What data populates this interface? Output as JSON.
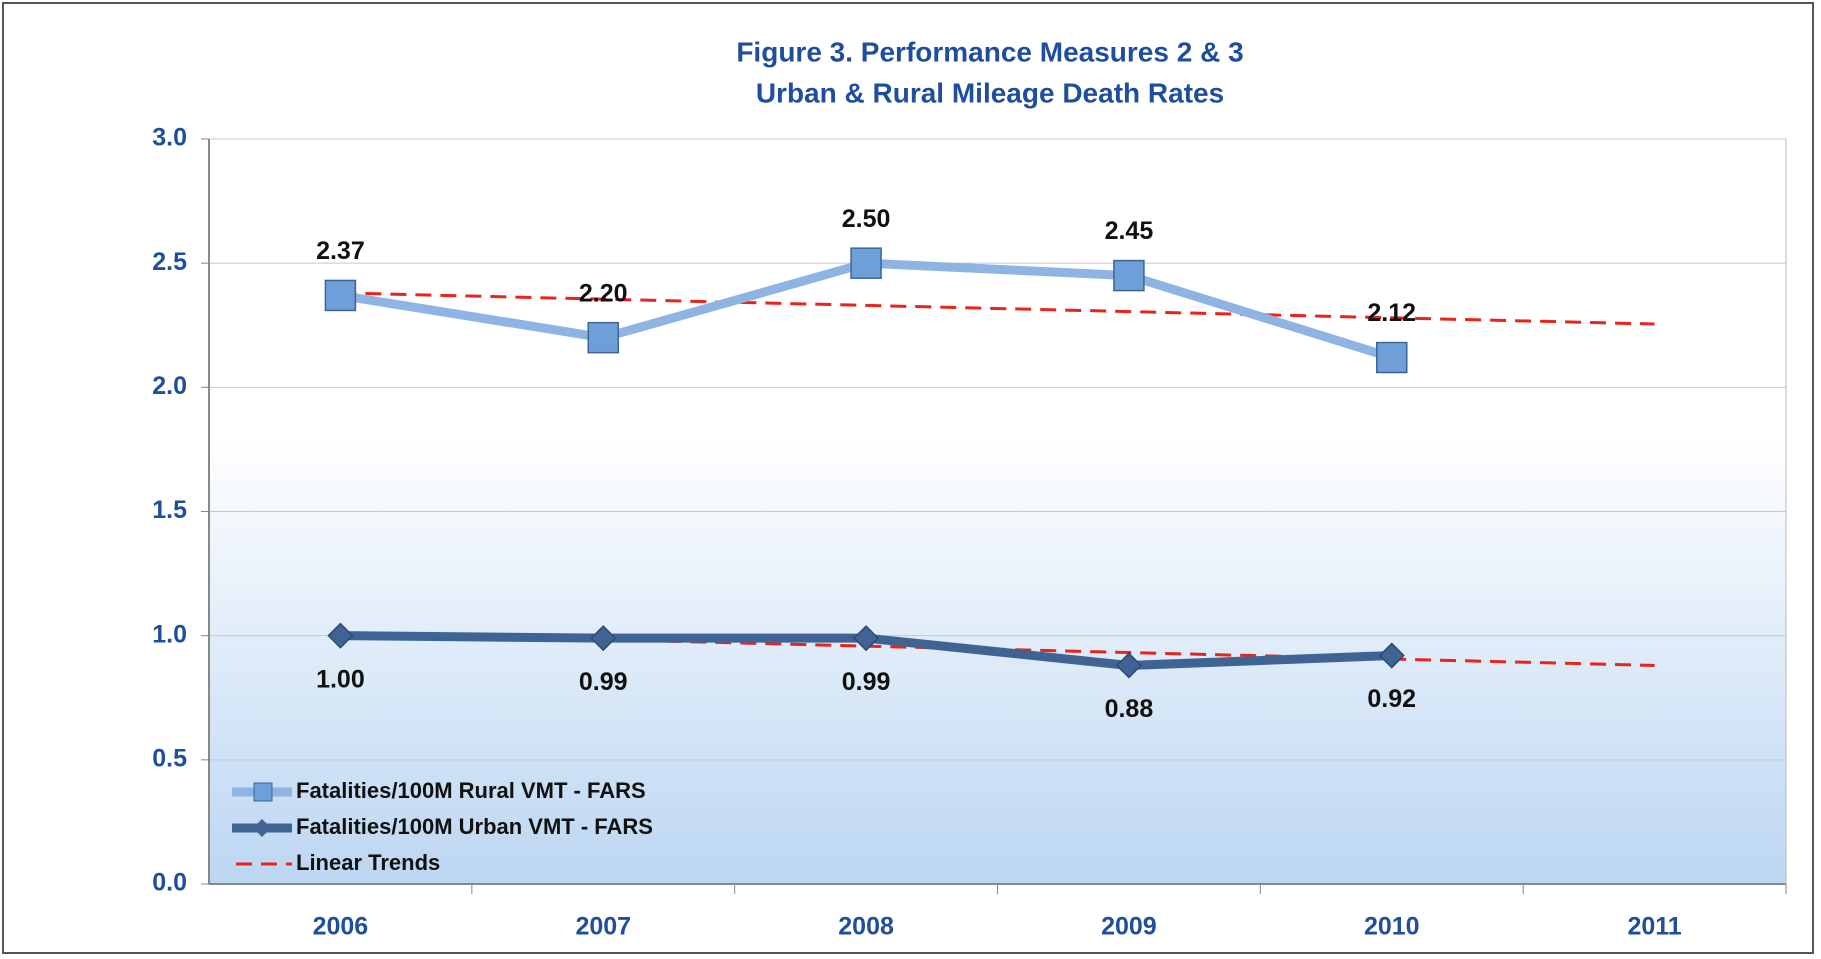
{
  "chart_data": {
    "type": "line",
    "title": "Figure 3. Performance Measures 2 & 3",
    "subtitle": "Urban & Rural Mileage Death Rates",
    "categories": [
      "2006",
      "2007",
      "2008",
      "2009",
      "2010",
      "2011"
    ],
    "series": [
      {
        "name": "Fatalities/100M Rural VMT - FARS",
        "color": "#8db4e2",
        "marker": "square",
        "values": [
          2.37,
          2.2,
          2.5,
          2.45,
          2.12,
          null
        ],
        "value_labels": [
          "2.37",
          "2.20",
          "2.50",
          "2.45",
          "2.12",
          null
        ]
      },
      {
        "name": "Fatalities/100M Urban VMT - FARS",
        "color": "#3f6494",
        "marker": "diamond",
        "values": [
          1.0,
          0.99,
          0.99,
          0.88,
          0.92,
          null
        ],
        "value_labels": [
          "1.00",
          "0.99",
          "0.99",
          "0.88",
          "0.92",
          null
        ]
      }
    ],
    "trends": {
      "name": "Linear Trends",
      "color": "#e8241c",
      "lines": [
        [
          2.38,
          2.355,
          2.33,
          2.305,
          2.28,
          2.255
        ],
        [
          1.01,
          0.984,
          0.958,
          0.932,
          0.906,
          0.88
        ]
      ]
    },
    "ylim": [
      0,
      3
    ],
    "yticks": [
      {
        "value": 0,
        "label": "0.0"
      },
      {
        "value": 0.5,
        "label": "0.5"
      },
      {
        "value": 1,
        "label": "1.0"
      },
      {
        "value": 1.5,
        "label": "1.5"
      },
      {
        "value": 2,
        "label": "2.0"
      },
      {
        "value": 2.5,
        "label": "2.5"
      },
      {
        "value": 3,
        "label": "3.0"
      }
    ],
    "grid": true,
    "legend": "lower left"
  }
}
